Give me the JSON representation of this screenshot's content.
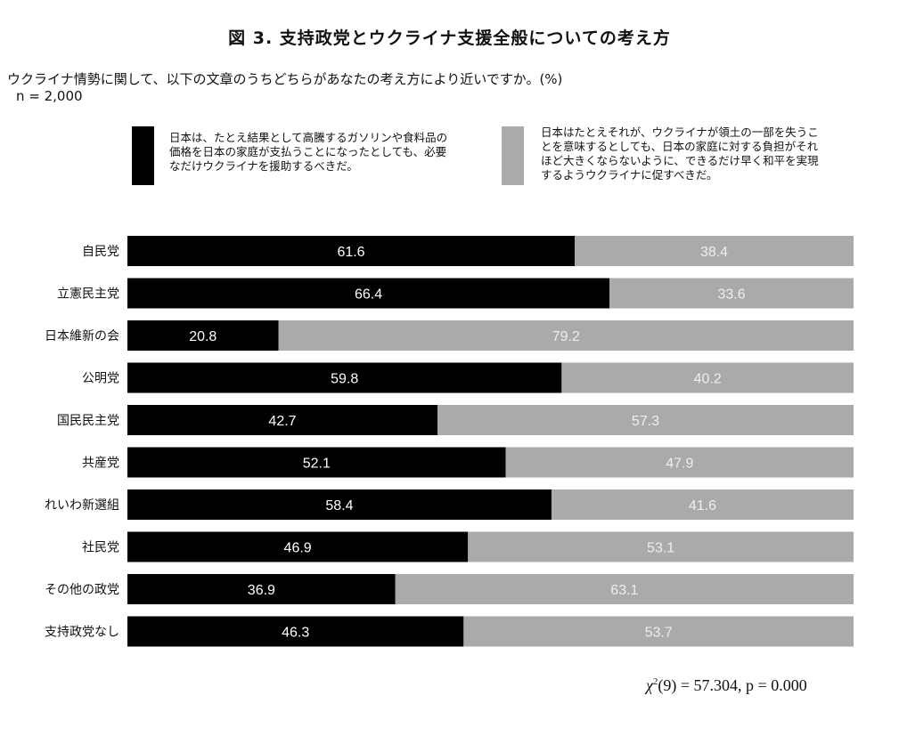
{
  "title": "図 3.  支持政党とウクライナ支援全般についての考え方",
  "question": "ウクライナ情勢に関して、以下の文章のうちどちらがあなたの考え方により近いですか。(%)",
  "n_label": "n = 2,000",
  "legend": [
    {
      "name": "日本は、たとえ結果として高騰するガソリンや食料品の価格を日本の家庭が支払うことになったとしても、必要なだけウクライナを援助するべきだ。",
      "lines": [
        "日本は、たとえ結果として高騰するガソリンや食料品の",
        "価格を日本の家庭が支払うことになったとしても、必要",
        "なだけウクライナを援助するべきだ。"
      ],
      "color": "#000000"
    },
    {
      "name": "日本はたとえそれが、ウクライナが領土の一部を失うことを意味するとしても、日本の家庭に対する負担がそれほど大きくならないように、できるだけ早く和平を実現するようウクライナに促すべきだ。",
      "lines": [
        "日本はたとえそれが、ウクライナが領土の一部を失うこ",
        "とを意味するとしても、日本の家庭に対する負担がそれ",
        "ほど大きくならないように、できるだけ早く和平を実現",
        "するようウクライナに促すべきだ。"
      ],
      "color": "#aaaaaa"
    }
  ],
  "stat": {
    "symbol": "χ",
    "superscript": "2",
    "text": "(9) = 57.304, p = 0.000"
  },
  "chart_data": {
    "type": "bar",
    "orientation": "horizontal",
    "stacked": true,
    "categories": [
      "自民党",
      "立憲民主党",
      "日本維新の会",
      "公明党",
      "国民民主党",
      "共産党",
      "れいわ新選組",
      "社民党",
      "その他の政党",
      "支持政党なし"
    ],
    "series": [
      {
        "values": [
          61.6,
          66.4,
          20.8,
          59.8,
          42.7,
          52.1,
          58.4,
          46.9,
          36.9,
          46.3
        ],
        "color": "#000000",
        "label_color": "#ffffff"
      },
      {
        "values": [
          38.4,
          33.6,
          79.2,
          40.2,
          57.3,
          47.9,
          41.6,
          53.1,
          63.1,
          53.7
        ],
        "color": "#aaaaaa",
        "label_color": "#eeeeee"
      }
    ],
    "xlim": [
      0,
      100
    ],
    "grid": false,
    "legend_position": "top"
  }
}
